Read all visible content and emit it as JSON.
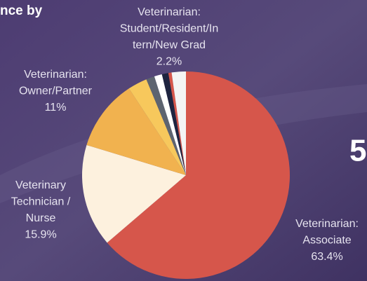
{
  "chart_data": {
    "type": "pie",
    "title": "nce by",
    "side_text": "5",
    "categories": [
      [
        "Veterinarian:",
        "Associate"
      ],
      [
        "Veterinary",
        "Technician /",
        "Nurse"
      ],
      [
        "Veterinarian:",
        "Owner/Partner"
      ],
      null,
      null,
      null,
      null,
      null,
      [
        "Veterinarian:",
        "Student/Resident/In",
        "tern/New Grad"
      ]
    ],
    "values": [
      63.4,
      15.9,
      11,
      3,
      1.3,
      1.2,
      1,
      0.5,
      2.2
    ],
    "value_labels": [
      "63.4%",
      "15.9%",
      "11%",
      null,
      null,
      null,
      null,
      null,
      "2.2%"
    ],
    "colors": [
      "#d6564b",
      "#fdf1de",
      "#f1b24f",
      "#f7c85c",
      "#5d6470",
      "#ffffff",
      "#1e2440",
      "#d6564b",
      "#f4f4f4"
    ]
  }
}
